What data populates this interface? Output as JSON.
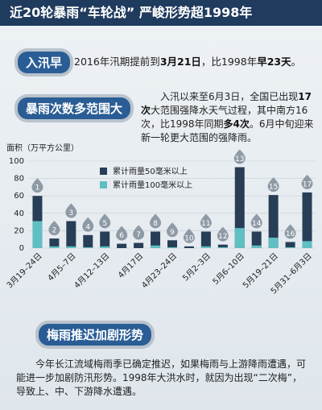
{
  "header": {
    "title": "近20轮暴雨“车轮战” 严峻形势超1998年"
  },
  "sections": [
    {
      "badge": "入汛早",
      "paragraph": [
        {
          "text": "2016年汛期提前到",
          "bold": false
        },
        {
          "text": "3月21日",
          "bold": true
        },
        {
          "text": "，比1998年",
          "bold": false
        },
        {
          "text": "早23天",
          "bold": true
        },
        {
          "text": "。",
          "bold": false
        }
      ]
    },
    {
      "badge": "暴雨次数多范围大",
      "paragraph": [
        {
          "text": "入汛以来至6月3日，全国已出现",
          "bold": false
        },
        {
          "text": "17次",
          "bold": true
        },
        {
          "text": "大范围强降水天气过程，其中南方16次，比1998年同期",
          "bold": false
        },
        {
          "text": "多4次",
          "bold": true
        },
        {
          "text": "。6月中旬迎来新一轮更大范围的强降雨。",
          "bold": false
        }
      ]
    },
    {
      "badge": "梅雨推迟加剧形势",
      "paragraph": [
        {
          "text": "今年长江流域梅雨季已确定推迟，如果梅雨与上游降雨遭遇，可能进一步加剧防汛形势。1998年大洪水时，就因为出现“二次梅”，导致上、中、下游降水遭遇。",
          "bold": false
        }
      ]
    }
  ],
  "chart_data": {
    "type": "bar",
    "y_label": "面积（万平方公里）",
    "categories": [
      "3月19–24日",
      null,
      "4月5–7日",
      null,
      "4月12–13日",
      null,
      "4月17日",
      null,
      "4月23–24日",
      null,
      "5月2–3日",
      null,
      "5月6–10日",
      null,
      "5月19–21日",
      null,
      "5月31–6月3日"
    ],
    "bar_numbers": [
      "1",
      "2",
      "3",
      "4",
      "5",
      "6",
      "7",
      "8",
      "9",
      "10",
      "11",
      "12",
      "13",
      "14",
      "15",
      "16",
      "17"
    ],
    "series": [
      {
        "name": "累计雨量50毫米以上",
        "color": "#283d56",
        "values": [
          60,
          11,
          31,
          15,
          19,
          5,
          6,
          19,
          9,
          2,
          19,
          4,
          93,
          19,
          61,
          7,
          64
        ]
      },
      {
        "name": "累计雨量100毫米以上",
        "color": "#5fbfc2",
        "values": [
          31,
          2,
          2,
          1,
          2,
          0,
          0,
          3,
          1,
          0,
          2,
          1,
          23,
          3,
          12,
          1,
          8
        ]
      }
    ],
    "ylim": [
      0,
      100
    ],
    "yticks": [
      0,
      20,
      40,
      60,
      80,
      100
    ],
    "grid": true,
    "overlay": true
  }
}
